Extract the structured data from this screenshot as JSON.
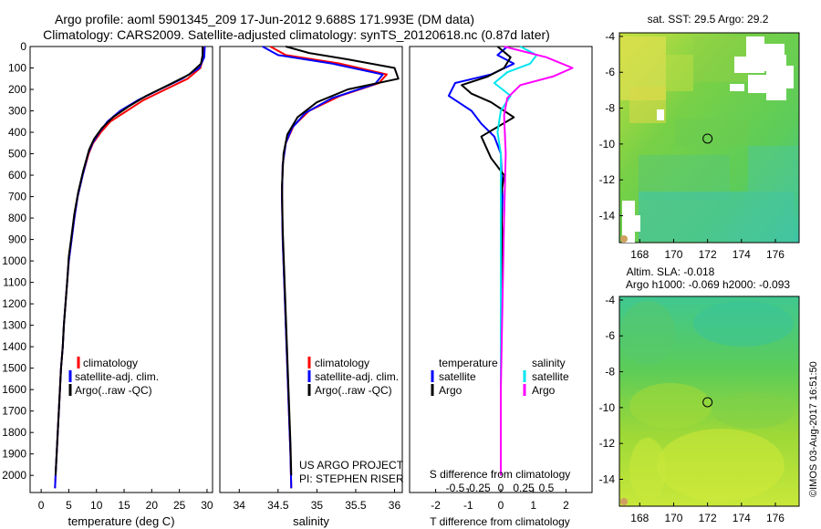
{
  "header": {
    "line1": "Argo profile: aoml 5901345_209 17-Jun-2012 9.688S 171.993E (DM data)",
    "line2": "Climatology: CARS2009. Satellite-adjusted climatology: synTS_20120618.nc (0.87d later)"
  },
  "sst_title": "sat. SST: 29.5 Argo: 29.2",
  "sla_title1": "Altim. SLA: -0.018",
  "sla_title2": "Argo h1000: -0.069 h2000: -0.093",
  "side_stamp": "©IMOS 03-Aug-2017 16:51:50",
  "project_line1": "US ARGO PROJECT",
  "project_line2": "PI: STEPHEN RISER",
  "colors": {
    "climatology": "#ff0000",
    "satellite": "#0000ff",
    "argo": "#000000",
    "sal_satellite": "#00e5ee",
    "sal_argo": "#ff00ff",
    "map_green": "#66d44a",
    "map_yellow": "#d8e84a",
    "map_cyan": "#44c8a0"
  },
  "chart_data": [
    {
      "type": "line",
      "name": "temperature-profile",
      "xlabel": "temperature (deg C)",
      "ylabel": "",
      "xlim": [
        -2,
        31
      ],
      "ylim": [
        2080,
        0
      ],
      "xticks": [
        0,
        5,
        10,
        15,
        20,
        25,
        30
      ],
      "yticks": [
        0,
        100,
        200,
        300,
        400,
        500,
        600,
        700,
        800,
        900,
        1000,
        1100,
        1200,
        1300,
        1400,
        1500,
        1600,
        1700,
        1800,
        1900,
        2000
      ],
      "legend": [
        "climatology",
        "satellite-adj. clim.",
        "Argo(..raw -QC)"
      ],
      "series": [
        {
          "name": "climatology",
          "color": "#ff0000",
          "points": [
            [
              29.4,
              0
            ],
            [
              29.3,
              50
            ],
            [
              28.8,
              100
            ],
            [
              26.5,
              150
            ],
            [
              22.5,
              200
            ],
            [
              18.5,
              250
            ],
            [
              15.5,
              300
            ],
            [
              12.5,
              350
            ],
            [
              10.8,
              400
            ],
            [
              9.4,
              450
            ],
            [
              8.6,
              500
            ],
            [
              7.5,
              600
            ],
            [
              6.6,
              700
            ],
            [
              6.0,
              800
            ],
            [
              5.5,
              900
            ],
            [
              5.0,
              1000
            ],
            [
              4.7,
              1100
            ],
            [
              4.4,
              1200
            ],
            [
              4.1,
              1300
            ],
            [
              3.9,
              1400
            ],
            [
              3.6,
              1500
            ],
            [
              3.4,
              1600
            ],
            [
              3.2,
              1700
            ],
            [
              3.0,
              1800
            ],
            [
              2.8,
              1900
            ],
            [
              2.6,
              2000
            ],
            [
              2.5,
              2060
            ]
          ]
        },
        {
          "name": "satellite",
          "color": "#0000ff",
          "points": [
            [
              29.6,
              0
            ],
            [
              29.5,
              50
            ],
            [
              28.6,
              100
            ],
            [
              25.5,
              150
            ],
            [
              21.5,
              200
            ],
            [
              17.5,
              250
            ],
            [
              14.3,
              300
            ],
            [
              12.0,
              350
            ],
            [
              10.5,
              400
            ],
            [
              9.3,
              450
            ],
            [
              8.5,
              500
            ],
            [
              7.5,
              600
            ],
            [
              6.6,
              700
            ],
            [
              6.0,
              800
            ],
            [
              5.5,
              900
            ],
            [
              5.0,
              1000
            ],
            [
              4.7,
              1100
            ],
            [
              4.4,
              1200
            ],
            [
              4.1,
              1300
            ],
            [
              3.9,
              1400
            ],
            [
              3.6,
              1500
            ],
            [
              3.4,
              1600
            ],
            [
              3.2,
              1700
            ],
            [
              3.0,
              1800
            ],
            [
              2.8,
              1900
            ],
            [
              2.6,
              2000
            ],
            [
              2.5,
              2060
            ]
          ]
        },
        {
          "name": "argo",
          "color": "#000000",
          "points": [
            [
              29.2,
              0
            ],
            [
              29.2,
              40
            ],
            [
              28.9,
              80
            ],
            [
              26.8,
              130
            ],
            [
              23.0,
              180
            ],
            [
              19.0,
              230
            ],
            [
              15.8,
              280
            ],
            [
              13.0,
              330
            ],
            [
              11.0,
              380
            ],
            [
              9.6,
              430
            ],
            [
              8.7,
              480
            ],
            [
              7.6,
              580
            ],
            [
              6.7,
              680
            ],
            [
              6.0,
              780
            ],
            [
              5.5,
              880
            ],
            [
              5.0,
              980
            ],
            [
              4.7,
              1100
            ],
            [
              4.4,
              1200
            ],
            [
              4.1,
              1300
            ],
            [
              3.9,
              1400
            ],
            [
              3.6,
              1500
            ],
            [
              3.4,
              1600
            ],
            [
              3.2,
              1700
            ],
            [
              3.0,
              1800
            ],
            [
              2.8,
              1900
            ],
            [
              2.6,
              2000
            ]
          ]
        }
      ]
    },
    {
      "type": "line",
      "name": "salinity-profile",
      "xlabel": "salinity",
      "xlim": [
        33.75,
        36.1
      ],
      "ylim": [
        2080,
        0
      ],
      "xticks": [
        34,
        34.5,
        35,
        35.5,
        36
      ],
      "legend": [
        "climatology",
        "satellite-adj. clim.",
        "Argo(..raw -QC)"
      ],
      "series": [
        {
          "name": "climatology",
          "color": "#ff0000",
          "points": [
            [
              34.4,
              0
            ],
            [
              34.6,
              40
            ],
            [
              35.3,
              80
            ],
            [
              35.9,
              130
            ],
            [
              35.8,
              170
            ],
            [
              35.3,
              230
            ],
            [
              34.9,
              300
            ],
            [
              34.7,
              370
            ],
            [
              34.6,
              450
            ],
            [
              34.56,
              550
            ],
            [
              34.55,
              700
            ],
            [
              34.56,
              900
            ],
            [
              34.58,
              1100
            ],
            [
              34.6,
              1300
            ],
            [
              34.62,
              1500
            ],
            [
              34.64,
              1700
            ],
            [
              34.66,
              1900
            ],
            [
              34.67,
              2060
            ]
          ]
        },
        {
          "name": "satellite",
          "color": "#0000ff",
          "points": [
            [
              34.3,
              0
            ],
            [
              34.5,
              40
            ],
            [
              35.2,
              80
            ],
            [
              35.85,
              130
            ],
            [
              35.75,
              175
            ],
            [
              35.2,
              240
            ],
            [
              34.85,
              310
            ],
            [
              34.68,
              380
            ],
            [
              34.6,
              450
            ],
            [
              34.56,
              550
            ],
            [
              34.55,
              700
            ],
            [
              34.56,
              900
            ],
            [
              34.58,
              1100
            ],
            [
              34.6,
              1300
            ],
            [
              34.62,
              1500
            ],
            [
              34.64,
              1700
            ],
            [
              34.66,
              1900
            ],
            [
              34.67,
              2060
            ]
          ]
        },
        {
          "name": "argo",
          "color": "#000000",
          "points": [
            [
              34.6,
              0
            ],
            [
              34.9,
              30
            ],
            [
              35.4,
              60
            ],
            [
              36.0,
              100
            ],
            [
              36.05,
              150
            ],
            [
              35.4,
              200
            ],
            [
              35.0,
              260
            ],
            [
              34.75,
              330
            ],
            [
              34.62,
              410
            ],
            [
              34.57,
              500
            ],
            [
              34.55,
              650
            ],
            [
              34.56,
              850
            ],
            [
              34.58,
              1050
            ],
            [
              34.6,
              1250
            ],
            [
              34.62,
              1450
            ],
            [
              34.64,
              1650
            ],
            [
              34.66,
              1850
            ],
            [
              34.67,
              2000
            ]
          ]
        }
      ]
    },
    {
      "type": "line",
      "name": "difference-profile",
      "xlabel": "T difference from climatology",
      "xlabel_top": "S difference from climatology",
      "xlim": [
        -2.8,
        2.8
      ],
      "ylim": [
        2080,
        0
      ],
      "xticks_T": [
        -2,
        -1,
        0,
        1,
        2
      ],
      "xticks_S_labels": [
        "-0.5",
        "-0.25",
        "0",
        "0.25",
        "0.5"
      ],
      "legend_headers": [
        "temperature",
        "salinity"
      ],
      "legend": [
        "satellite",
        "Argo",
        "satellite",
        "Argo"
      ],
      "series": [
        {
          "name": "temperature satellite",
          "color": "#0000ff",
          "points": [
            [
              0.2,
              0
            ],
            [
              -0.1,
              40
            ],
            [
              0.4,
              80
            ],
            [
              -0.3,
              130
            ],
            [
              -1.4,
              170
            ],
            [
              -1.6,
              230
            ],
            [
              -0.9,
              300
            ],
            [
              -0.6,
              360
            ],
            [
              -0.2,
              420
            ],
            [
              0.0,
              500
            ],
            [
              0.05,
              700
            ],
            [
              0.0,
              1000
            ],
            [
              0.0,
              1500
            ],
            [
              0.0,
              2000
            ]
          ]
        },
        {
          "name": "temperature Argo",
          "color": "#000000",
          "points": [
            [
              -0.1,
              0
            ],
            [
              0.3,
              50
            ],
            [
              0.1,
              100
            ],
            [
              -0.4,
              140
            ],
            [
              -1.2,
              180
            ],
            [
              -0.9,
              220
            ],
            [
              -0.3,
              260
            ],
            [
              0.4,
              330
            ],
            [
              -0.6,
              420
            ],
            [
              -0.3,
              520
            ],
            [
              0.1,
              600
            ],
            [
              0.0,
              700
            ],
            [
              0.05,
              900
            ],
            [
              0.0,
              1200
            ],
            [
              0.0,
              1500
            ],
            [
              0.0,
              1800
            ],
            [
              0.0,
              2000
            ]
          ]
        },
        {
          "name": "salinity satellite",
          "color": "#00e5ee",
          "points": [
            [
              0.6,
              0
            ],
            [
              1.1,
              40
            ],
            [
              0.9,
              80
            ],
            [
              0.2,
              120
            ],
            [
              -0.2,
              170
            ],
            [
              0.3,
              230
            ],
            [
              0.0,
              300
            ],
            [
              -0.1,
              400
            ],
            [
              0.0,
              500
            ],
            [
              0.0,
              700
            ],
            [
              0.0,
              1000
            ],
            [
              0.0,
              1500
            ],
            [
              0.0,
              2000
            ]
          ]
        },
        {
          "name": "salinity Argo",
          "color": "#ff00ff",
          "points": [
            [
              0.1,
              0
            ],
            [
              1.4,
              50
            ],
            [
              2.2,
              100
            ],
            [
              1.6,
              140
            ],
            [
              0.6,
              180
            ],
            [
              0.2,
              240
            ],
            [
              0.1,
              320
            ],
            [
              0.15,
              500
            ],
            [
              0.1,
              800
            ],
            [
              0.05,
              1200
            ],
            [
              0.0,
              1600
            ],
            [
              0.0,
              2000
            ]
          ]
        }
      ]
    },
    {
      "type": "heatmap",
      "name": "sst-map",
      "xticks": [
        168,
        170,
        172,
        174,
        176
      ],
      "yticks": [
        -4,
        -6,
        -8,
        -10,
        -12,
        -14
      ],
      "xlim": [
        166.8,
        177.4
      ],
      "ylim": [
        -15.5,
        -3.8
      ],
      "marker": [
        172,
        -9.7
      ]
    },
    {
      "type": "heatmap",
      "name": "sla-map",
      "xticks": [
        168,
        170,
        172,
        174,
        176
      ],
      "yticks": [
        -4,
        -6,
        -8,
        -10,
        -12,
        -14
      ],
      "xlim": [
        166.8,
        177.4
      ],
      "ylim": [
        -15.5,
        -3.8
      ],
      "marker": [
        172,
        -9.7
      ]
    }
  ]
}
